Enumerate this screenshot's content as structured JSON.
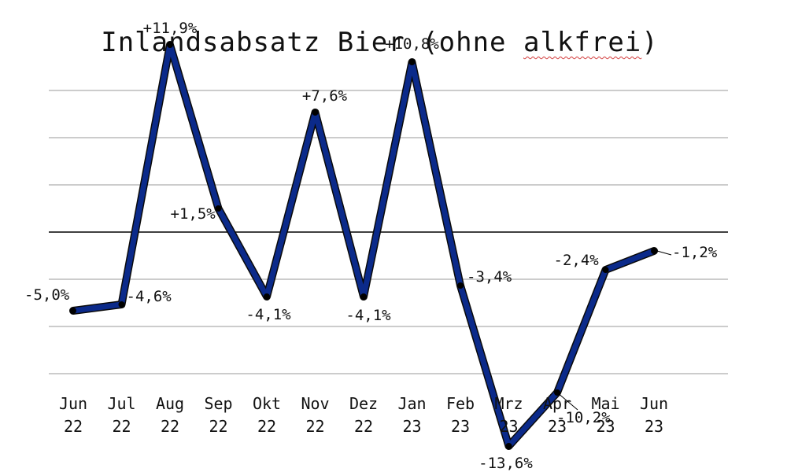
{
  "chart_data": {
    "type": "line",
    "title_main": "Inlandsabsatz Bier (ohne ",
    "title_marked": "alkfrei",
    "title_end": ")",
    "xlabel": "",
    "ylabel": "",
    "ylim": [
      -15,
      15
    ],
    "y_grid_step": 3,
    "grid": true,
    "legend": "none",
    "line_color": "#0b2a8a",
    "line_outline_color": "#0a0a0a",
    "point_color": "#000000",
    "categories": [
      [
        "Jun",
        "22"
      ],
      [
        "Jul",
        "22"
      ],
      [
        "Aug",
        "22"
      ],
      [
        "Sep",
        "22"
      ],
      [
        "Okt",
        "22"
      ],
      [
        "Nov",
        "22"
      ],
      [
        "Dez",
        "22"
      ],
      [
        "Jan",
        "23"
      ],
      [
        "Feb",
        "23"
      ],
      [
        "Mrz",
        "23"
      ],
      [
        "Apr",
        "23"
      ],
      [
        "Mai",
        "23"
      ],
      [
        "Jun",
        "23"
      ]
    ],
    "values": [
      -5.0,
      -4.6,
      11.9,
      1.5,
      -4.1,
      7.6,
      -4.1,
      10.8,
      -3.4,
      -13.6,
      -10.2,
      -2.4,
      -1.2
    ],
    "data_labels": [
      "-5,0%",
      "-4,6%",
      "+11,9%",
      "+1,5%",
      "-4,1%",
      "+7,6%",
      "-4,1%",
      "+10,8%",
      "-3,4%",
      "-13,6%",
      "-10,2%",
      "-2,4%",
      "-1,2%"
    ]
  }
}
